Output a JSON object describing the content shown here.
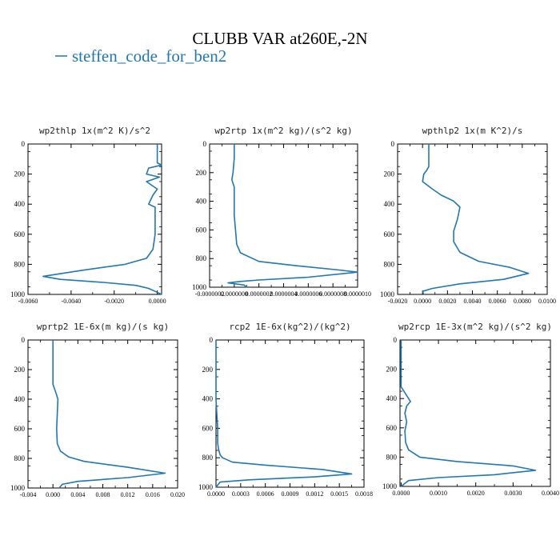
{
  "title": "CLUBB VAR at260E,-2N",
  "legend": {
    "label": "steffen_code_for_ben2",
    "color": "#1f77b4"
  },
  "chart_data": [
    {
      "type": "line",
      "title": "wp2thlp   1x(m^2 K)/s^2",
      "xlim": [
        -0.006,
        0.0002
      ],
      "ylim": [
        1000,
        0
      ],
      "xticks": [
        "-0.0060",
        "-0.0040",
        "-0.0020",
        "0.0000"
      ],
      "yticks": [
        "0",
        "200",
        "400",
        "600",
        "800",
        "1000"
      ],
      "series": [
        {
          "color": "#1f77b4",
          "x": [
            0.0,
            0.0,
            0.0,
            0.0,
            0.0002,
            -0.0004,
            -0.0005,
            0.0001,
            -0.0005,
            -0.0002,
            0.0,
            -0.0002,
            -0.0004,
            -0.0001,
            -0.0001,
            -0.0001,
            -0.0002,
            -0.0005,
            -0.0015,
            -0.0035,
            -0.0053,
            -0.0045,
            -0.0025,
            -0.001,
            -0.0004,
            -0.0001,
            0.0002
          ],
          "y": [
            0,
            50,
            100,
            125,
            140,
            160,
            200,
            220,
            250,
            280,
            300,
            340,
            400,
            420,
            500,
            600,
            700,
            760,
            800,
            840,
            880,
            900,
            920,
            940,
            960,
            980,
            1000
          ]
        }
      ]
    },
    {
      "type": "line",
      "title": "wp2rtp   1x(m^2 kg)/(s^2 kg)",
      "xlim": [
        -2e-07,
        1e-06
      ],
      "ylim": [
        1000,
        0
      ],
      "xticks": [
        "-0.0000002",
        "0.0000000",
        "0.0000002",
        "0.0000004",
        "0.0000006",
        "0.0000008",
        "0.0000010"
      ],
      "yticks": [
        "0",
        "200",
        "400",
        "600",
        "800",
        "1000"
      ],
      "series": [
        {
          "color": "#1f77b4",
          "x": [
            0.0,
            0.0,
            -1e-08,
            -2e-08,
            0.0,
            0.0,
            0.0,
            1e-08,
            2e-08,
            5e-08,
            2e-07,
            5e-07,
            8.5e-07,
            1e-06,
            6e-07,
            2e-07,
            5e-08,
            -5e-08,
            8e-08,
            1e-07
          ],
          "y": [
            0,
            100,
            200,
            250,
            300,
            400,
            500,
            600,
            700,
            760,
            820,
            850,
            880,
            895,
            930,
            950,
            960,
            970,
            985,
            1000
          ]
        }
      ]
    },
    {
      "type": "line",
      "title": "wpthlp2   1x(m K^2)/s",
      "xlim": [
        -0.002,
        0.01
      ],
      "ylim": [
        1000,
        0
      ],
      "xticks": [
        "-0.0020",
        "0.0000",
        "0.0020",
        "0.0040",
        "0.0060",
        "0.0080",
        "0.0100"
      ],
      "yticks": [
        "0",
        "200",
        "400",
        "600",
        "800",
        "1000"
      ],
      "series": [
        {
          "color": "#1f77b4",
          "x": [
            0.0005,
            0.0005,
            0.0005,
            0.0003,
            0.0001,
            0.0,
            0.0008,
            0.0015,
            0.0025,
            0.003,
            0.0028,
            0.0025,
            0.0025,
            0.003,
            0.0045,
            0.007,
            0.0085,
            0.0065,
            0.003,
            0.0008,
            0.0,
            0.0001
          ],
          "y": [
            0,
            100,
            150,
            180,
            200,
            250,
            300,
            340,
            380,
            420,
            500,
            580,
            650,
            720,
            780,
            820,
            860,
            900,
            930,
            960,
            980,
            1000
          ]
        }
      ]
    },
    {
      "type": "line",
      "title": "wprtp2   1E-6x(m kg)/(s kg)",
      "xlim": [
        -0.004,
        0.02
      ],
      "ylim": [
        1000,
        0
      ],
      "xticks": [
        "-0.004",
        "0.000",
        "0.004",
        "0.008",
        "0.012",
        "0.016",
        "0.020"
      ],
      "yticks": [
        "0",
        "200",
        "400",
        "600",
        "800",
        "1000"
      ],
      "series": [
        {
          "color": "#1f77b4",
          "x": [
            0.0,
            0.0,
            0.0,
            0.0,
            0.0005,
            0.0008,
            0.0007,
            0.0006,
            0.0007,
            0.0012,
            0.0025,
            0.005,
            0.012,
            0.018,
            0.012,
            0.004,
            0.0015,
            0.001
          ],
          "y": [
            0,
            100,
            200,
            300,
            360,
            400,
            500,
            600,
            700,
            750,
            790,
            820,
            860,
            900,
            930,
            955,
            975,
            1000
          ]
        }
      ]
    },
    {
      "type": "line",
      "title": "rcp2   1E-6x(kg^2)/(kg^2)",
      "xlim": [
        0,
        0.0018
      ],
      "ylim": [
        1000,
        0
      ],
      "xticks": [
        "0.0000",
        "0.0003",
        "0.0006",
        "0.0009",
        "0.0012",
        "0.0015",
        "0.0018"
      ],
      "yticks": [
        "0",
        "200",
        "400",
        "600",
        "800",
        "1000"
      ],
      "series": [
        {
          "color": "#1f77b4",
          "x": [
            0.0,
            0.0,
            0.0,
            1e-05,
            2e-05,
            2e-05,
            3e-05,
            5e-05,
            8e-05,
            0.0002,
            0.0006,
            0.0013,
            0.00165,
            0.0012,
            0.0004,
            5e-05,
            0.0
          ],
          "y": [
            0,
            300,
            400,
            500,
            600,
            700,
            740,
            780,
            800,
            830,
            850,
            880,
            910,
            930,
            950,
            965,
            1000
          ]
        }
      ]
    },
    {
      "type": "line",
      "title": "wp2rcp   1E-3x(m^2 kg)/(s^2 kg)",
      "xlim": [
        -3e-05,
        0.004
      ],
      "ylim": [
        1000,
        0
      ],
      "xticks": [
        "0.0000",
        "0.0010",
        "0.0020",
        "0.0030",
        "0.0040"
      ],
      "yticks": [
        "0",
        "200",
        "400",
        "600",
        "800",
        "1000"
      ],
      "series": [
        {
          "color": "#1f77b4",
          "x": [
            0.0,
            0.0,
            0.0001,
            0.0002,
            0.00025,
            0.00015,
            0.0001,
            0.00015,
            0.0001,
            0.00012,
            0.0002,
            0.0005,
            0.0015,
            0.003,
            0.0036,
            0.0025,
            0.001,
            0.0002,
            0.0
          ],
          "y": [
            0,
            320,
            360,
            400,
            420,
            450,
            500,
            560,
            620,
            700,
            750,
            800,
            830,
            860,
            890,
            920,
            940,
            960,
            1000
          ]
        }
      ]
    }
  ]
}
